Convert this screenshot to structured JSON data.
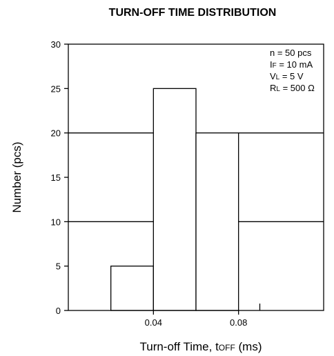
{
  "chart_data": {
    "type": "bar",
    "title": "TURN-OFF TIME DISTRIBUTION",
    "xlabel": "Turn-off Time, tOFF (ms)",
    "ylabel": "Number (pcs)",
    "x_range": [
      0,
      0.12
    ],
    "ylim": [
      0,
      30
    ],
    "y_ticks": [
      0,
      5,
      10,
      15,
      20,
      25,
      30
    ],
    "x_tick_values": [
      0.04,
      0.08
    ],
    "x_tick_labels": [
      "0.04",
      "0.08"
    ],
    "bins": [
      {
        "start": 0.02,
        "end": 0.04,
        "value": 5
      },
      {
        "start": 0.04,
        "end": 0.06,
        "value": 25
      },
      {
        "start": 0.06,
        "end": 0.08,
        "value": 20
      },
      {
        "start": 0.08,
        "end": 0.1,
        "value": 0
      }
    ],
    "grid_y": [
      10,
      20
    ],
    "conditions": [
      {
        "sym": "n",
        "sub": "",
        "val": " = 50 pcs"
      },
      {
        "sym": "I",
        "sub": "F",
        "val": " = 10 mA"
      },
      {
        "sym": "V",
        "sub": "L",
        "val": " = 5 V"
      },
      {
        "sym": "R",
        "sub": "L",
        "val": " = 500 Ω"
      }
    ]
  }
}
